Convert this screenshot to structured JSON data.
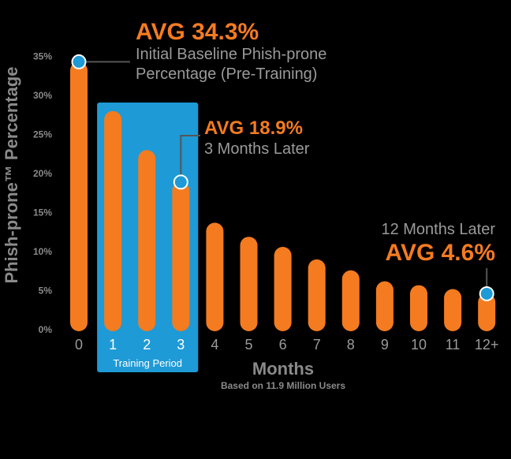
{
  "chart_data": {
    "type": "bar",
    "ylabel": "Phish-prone™ Percentage",
    "xlabel": "Months",
    "subtitle": "Based on 11.9 Million Users",
    "ylim": [
      0,
      35
    ],
    "yticks": [
      "0%",
      "5%",
      "10%",
      "15%",
      "20%",
      "25%",
      "30%",
      "35%"
    ],
    "categories": [
      "0",
      "1",
      "2",
      "3",
      "4",
      "5",
      "6",
      "7",
      "8",
      "9",
      "10",
      "11",
      "12+"
    ],
    "values": [
      34.3,
      28.0,
      23.0,
      18.9,
      13.7,
      11.9,
      10.6,
      9.0,
      7.6,
      6.2,
      5.7,
      5.2,
      4.6
    ],
    "training_period": {
      "label": "Training Period",
      "categories": [
        "1",
        "2",
        "3"
      ]
    },
    "annotations": [
      {
        "category": "0",
        "value": 34.3,
        "headline": "AVG 34.3%",
        "lines": [
          "Initial Baseline Phish-prone",
          "Percentage (Pre-Training)"
        ]
      },
      {
        "category": "3",
        "value": 18.9,
        "headline": "AVG 18.9%",
        "lines": [
          "3 Months Later"
        ]
      },
      {
        "category": "12+",
        "value": 4.6,
        "headline": "AVG 4.6%",
        "lines": [
          "12 Months Later"
        ]
      }
    ],
    "colors": {
      "bar": "#f47b20",
      "training": "#1e9ad6",
      "marker": "#1e9ad6",
      "axis_text": "#8a8a8a"
    }
  }
}
